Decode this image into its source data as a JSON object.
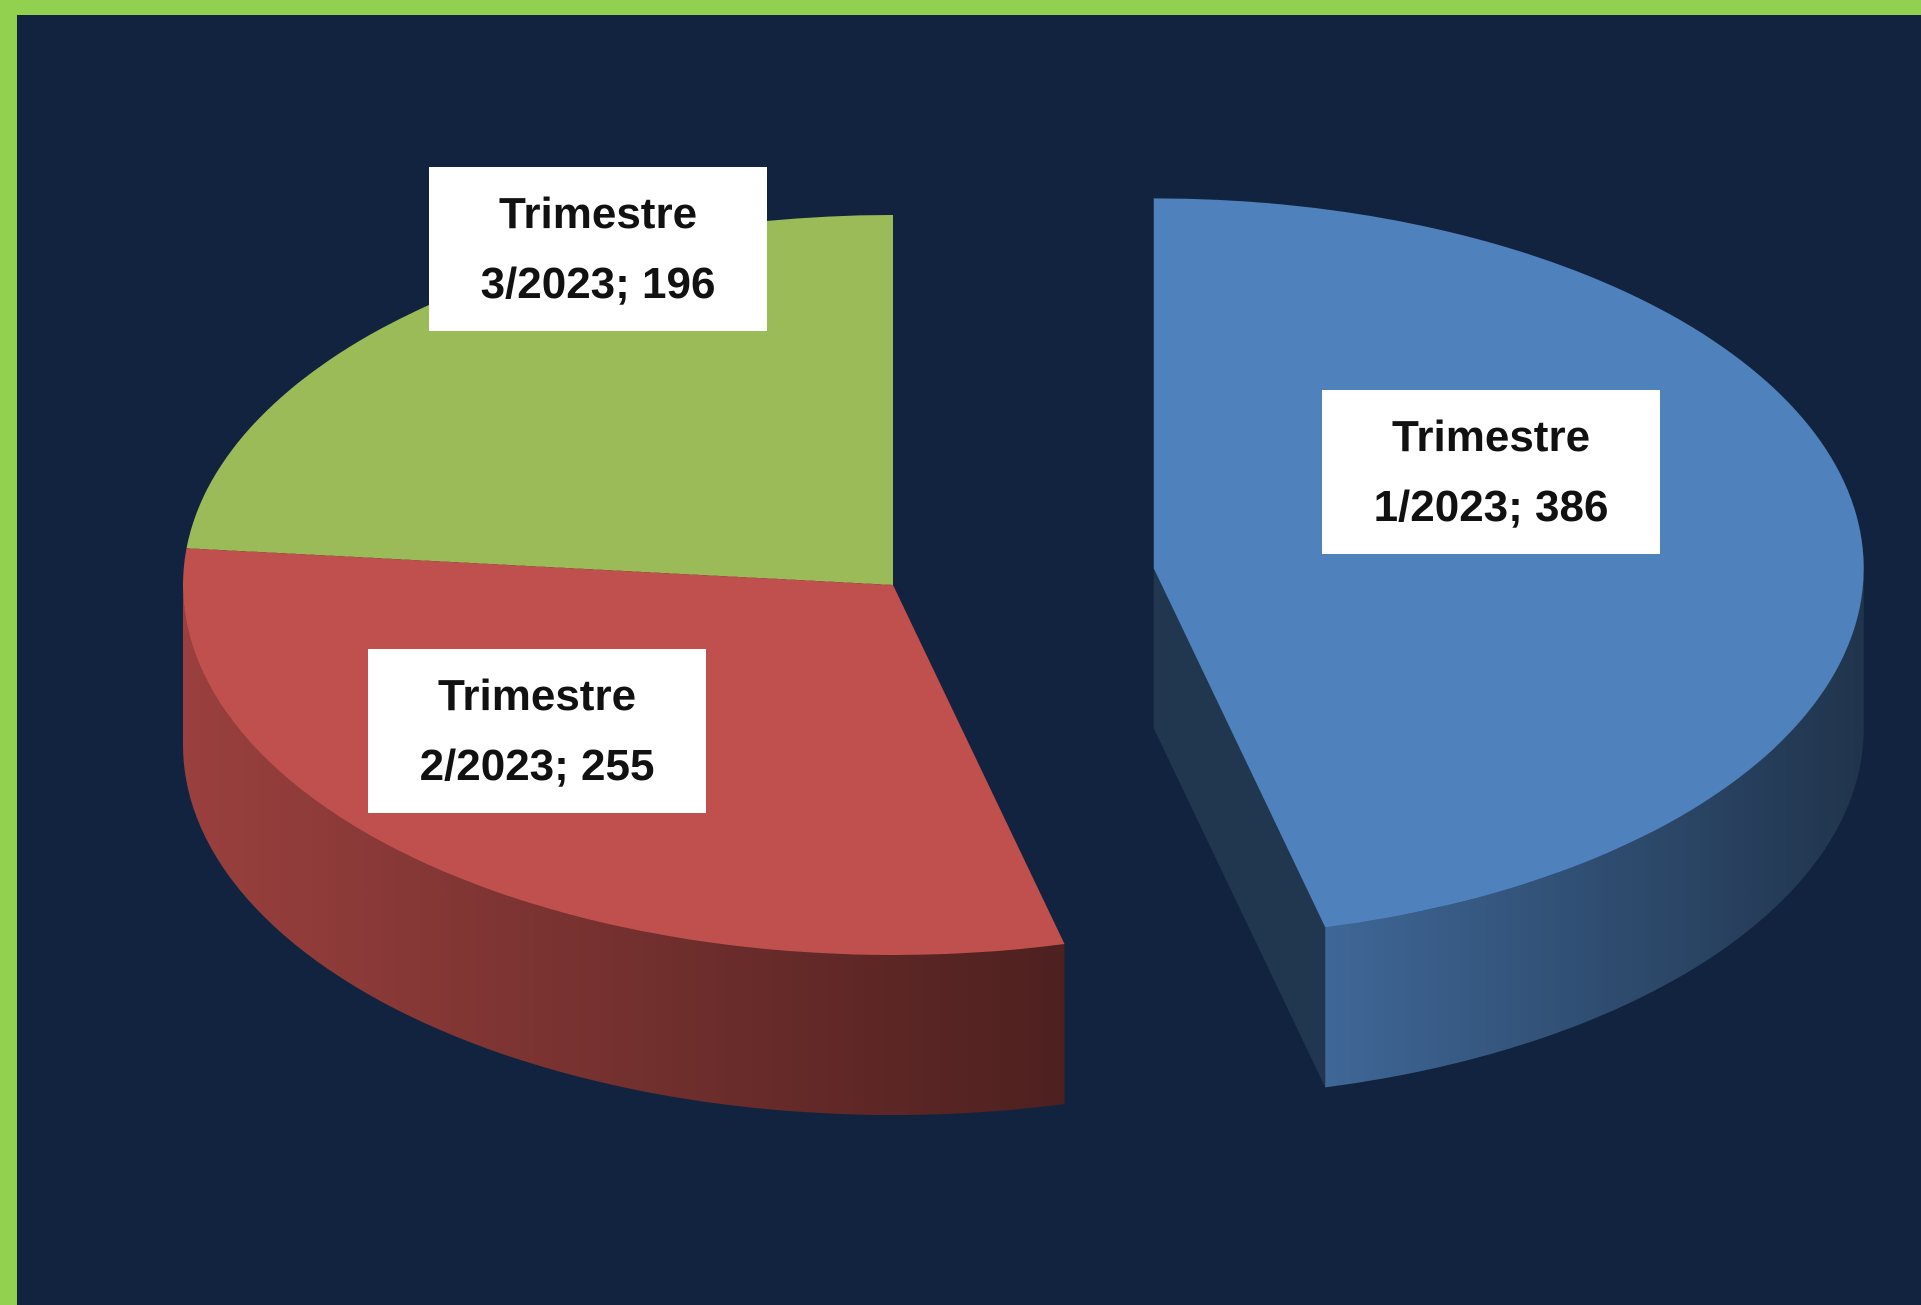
{
  "chart_data": {
    "type": "pie",
    "categories": [
      "Trimestre 1/2023",
      "Trimestre 2/2023",
      "Trimestre 3/2023"
    ],
    "values": [
      386,
      255,
      196
    ],
    "value_labels": [
      "Trimestre 1/2023; 386",
      "Trimestre 2/2023; 255",
      "Trimestre 3/2023; 196"
    ],
    "colors": [
      "#4f81bd",
      "#c0504d",
      "#9bbb59"
    ]
  }
}
